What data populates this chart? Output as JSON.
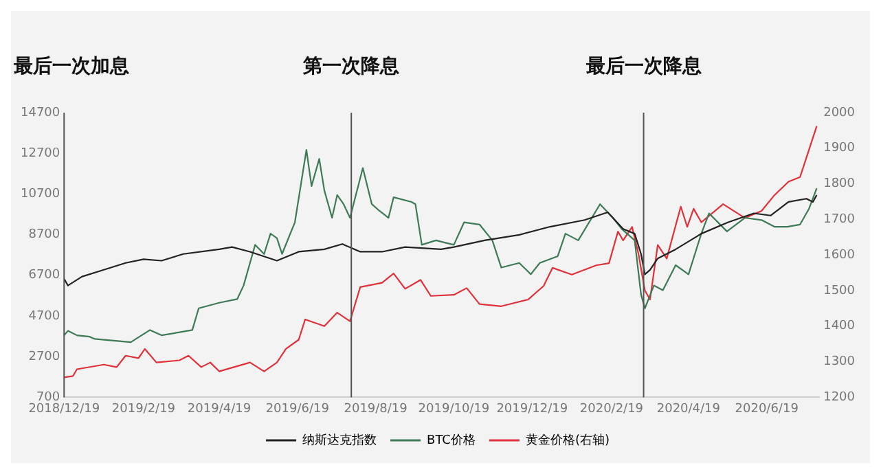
{
  "chart_data": {
    "type": "line",
    "xlim": [
      "2018-12-19",
      "2020-07-30"
    ],
    "xticks": [
      {
        "value": "2018-12-19",
        "label": "2018/12/19"
      },
      {
        "value": "2019-02-19",
        "label": "2019/2/19"
      },
      {
        "value": "2019-04-19",
        "label": "2019/4/19"
      },
      {
        "value": "2019-06-19",
        "label": "2019/6/19"
      },
      {
        "value": "2019-08-19",
        "label": "2019/8/19"
      },
      {
        "value": "2019-10-19",
        "label": "2019/10/19"
      },
      {
        "value": "2019-12-19",
        "label": "2019/12/19"
      },
      {
        "value": "2020-02-19",
        "label": "2020/2/19"
      },
      {
        "value": "2020-04-19",
        "label": "2020/4/19"
      },
      {
        "value": "2020-06-19",
        "label": "2020/6/19"
      }
    ],
    "ylim": [
      700,
      14700
    ],
    "yticks": [
      700,
      2700,
      4700,
      6700,
      8700,
      10700,
      12700,
      14700
    ],
    "y2lim": [
      1200,
      2000
    ],
    "y2ticks": [
      1200,
      1300,
      1400,
      1500,
      1600,
      1700,
      1800,
      1900,
      2000
    ],
    "grid": false,
    "legend": "bottom",
    "marker": "none",
    "line_style": "solid",
    "ref_lines": [
      {
        "axis": "x",
        "value": "2018-12-19",
        "label": "最后一次加息",
        "color": "#555555"
      },
      {
        "axis": "x",
        "value": "2019-07-31",
        "label": "第一次降息",
        "color": "#555555"
      },
      {
        "axis": "x",
        "value": "2020-03-15",
        "label": "最后一次降息",
        "color": "#555555"
      }
    ],
    "series": [
      {
        "name": "纳斯达克指数",
        "color": "#222222",
        "x": [
          "2018-12-19",
          "2018-12-22",
          "2019-01-02",
          "2019-01-19",
          "2019-02-05",
          "2019-02-19",
          "2019-03-05",
          "2019-03-22",
          "2019-04-19",
          "2019-04-29",
          "2019-05-13",
          "2019-06-03",
          "2019-06-20",
          "2019-07-10",
          "2019-07-24",
          "2019-08-07",
          "2019-08-24",
          "2019-09-11",
          "2019-10-09",
          "2019-10-19",
          "2019-11-12",
          "2019-12-09",
          "2020-01-02",
          "2020-01-29",
          "2020-02-16",
          "2020-02-28",
          "2020-03-08",
          "2020-03-13",
          "2020-03-16",
          "2020-03-20",
          "2020-03-26",
          "2020-04-09",
          "2020-04-29",
          "2020-05-20",
          "2020-06-09",
          "2020-06-22",
          "2020-07-06",
          "2020-07-20",
          "2020-07-25",
          "2020-07-28"
        ],
        "values": [
          6530,
          6200,
          6640,
          6970,
          7310,
          7490,
          7420,
          7750,
          7980,
          8090,
          7860,
          7420,
          7860,
          7980,
          8240,
          7860,
          7860,
          8090,
          7980,
          8090,
          8420,
          8690,
          9090,
          9420,
          9800,
          8980,
          8750,
          7750,
          6750,
          6970,
          7530,
          7980,
          8750,
          9310,
          9750,
          9640,
          10310,
          10470,
          10310,
          10650
        ]
      },
      {
        "name": "BTC价格",
        "color": "#3d7a55",
        "x": [
          "2018-12-19",
          "2018-12-22",
          "2018-12-29",
          "2019-01-08",
          "2019-01-12",
          "2019-02-09",
          "2019-02-24",
          "2019-03-05",
          "2019-03-29",
          "2019-04-03",
          "2019-04-19",
          "2019-05-03",
          "2019-05-08",
          "2019-05-13",
          "2019-05-17",
          "2019-05-24",
          "2019-05-29",
          "2019-06-03",
          "2019-06-07",
          "2019-06-17",
          "2019-06-26",
          "2019-06-30",
          "2019-07-06",
          "2019-07-10",
          "2019-07-16",
          "2019-07-20",
          "2019-07-25",
          "2019-07-30",
          "2019-08-09",
          "2019-08-16",
          "2019-08-22",
          "2019-08-29",
          "2019-09-02",
          "2019-09-16",
          "2019-09-19",
          "2019-09-24",
          "2019-10-05",
          "2019-10-19",
          "2019-10-27",
          "2019-11-08",
          "2019-11-18",
          "2019-11-25",
          "2019-12-09",
          "2019-12-18",
          "2019-12-25",
          "2020-01-08",
          "2020-01-14",
          "2020-01-24",
          "2020-02-10",
          "2020-02-20",
          "2020-02-27",
          "2020-03-08",
          "2020-03-13",
          "2020-03-16",
          "2020-03-23",
          "2020-03-30",
          "2020-04-09",
          "2020-04-19",
          "2020-04-29",
          "2020-05-05",
          "2020-05-19",
          "2020-06-02",
          "2020-06-15",
          "2020-06-25",
          "2020-07-05",
          "2020-07-15",
          "2020-07-22",
          "2020-07-28"
        ],
        "values": [
          3750,
          3970,
          3750,
          3680,
          3570,
          3410,
          4010,
          3750,
          4010,
          5080,
          5350,
          5530,
          6200,
          7310,
          8200,
          7750,
          8750,
          8530,
          7750,
          9310,
          12870,
          11090,
          12430,
          10870,
          9530,
          10650,
          10200,
          9530,
          11980,
          10200,
          9870,
          9530,
          10540,
          10310,
          10200,
          8200,
          8420,
          8200,
          9310,
          9200,
          8420,
          7080,
          7310,
          6750,
          7310,
          7640,
          8750,
          8420,
          10200,
          9530,
          8980,
          8420,
          5750,
          5080,
          6200,
          5970,
          7200,
          6750,
          8750,
          9750,
          8860,
          9530,
          9420,
          9090,
          9090,
          9200,
          9980,
          10980
        ]
      },
      {
        "name": "黄金价格(右轴)",
        "color": "#e0303a",
        "axis": "y2",
        "x": [
          "2018-12-19",
          "2018-12-26",
          "2018-12-29",
          "2019-01-19",
          "2019-01-29",
          "2019-02-05",
          "2019-02-15",
          "2019-02-20",
          "2019-03-01",
          "2019-03-19",
          "2019-03-26",
          "2019-04-05",
          "2019-04-12",
          "2019-04-19",
          "2019-05-13",
          "2019-05-24",
          "2019-06-03",
          "2019-06-10",
          "2019-06-20",
          "2019-06-25",
          "2019-07-10",
          "2019-07-20",
          "2019-07-30",
          "2019-08-07",
          "2019-08-24",
          "2019-09-02",
          "2019-09-11",
          "2019-09-23",
          "2019-10-01",
          "2019-10-19",
          "2019-10-29",
          "2019-11-08",
          "2019-11-25",
          "2019-12-16",
          "2019-12-28",
          "2020-01-04",
          "2020-01-19",
          "2020-02-07",
          "2020-02-17",
          "2020-02-24",
          "2020-02-28",
          "2020-03-06",
          "2020-03-11",
          "2020-03-16",
          "2020-03-20",
          "2020-03-26",
          "2020-04-02",
          "2020-04-13",
          "2020-04-18",
          "2020-04-23",
          "2020-04-29",
          "2020-05-16",
          "2020-06-02",
          "2020-06-15",
          "2020-06-25",
          "2020-07-06",
          "2020-07-15",
          "2020-07-22",
          "2020-07-28"
        ],
        "values": [
          1256,
          1260,
          1279,
          1292,
          1285,
          1317,
          1310,
          1336,
          1298,
          1304,
          1317,
          1285,
          1298,
          1273,
          1298,
          1273,
          1298,
          1336,
          1362,
          1419,
          1400,
          1438,
          1414,
          1510,
          1522,
          1548,
          1505,
          1530,
          1485,
          1488,
          1507,
          1462,
          1456,
          1475,
          1513,
          1564,
          1545,
          1571,
          1577,
          1666,
          1641,
          1679,
          1603,
          1500,
          1475,
          1628,
          1590,
          1736,
          1679,
          1730,
          1692,
          1743,
          1704,
          1724,
          1768,
          1806,
          1819,
          1896,
          1962
        ]
      }
    ]
  }
}
